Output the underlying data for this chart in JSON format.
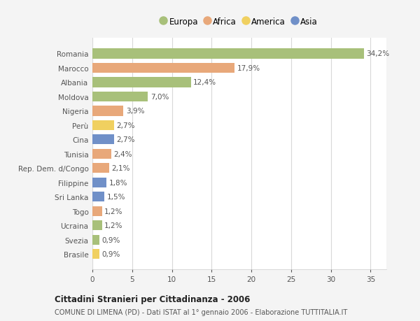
{
  "countries": [
    "Romania",
    "Marocco",
    "Albania",
    "Moldova",
    "Nigeria",
    "Perù",
    "Cina",
    "Tunisia",
    "Rep. Dem. d/Congo",
    "Filippine",
    "Sri Lanka",
    "Togo",
    "Ucraina",
    "Svezia",
    "Brasile"
  ],
  "values": [
    34.2,
    17.9,
    12.4,
    7.0,
    3.9,
    2.7,
    2.7,
    2.4,
    2.1,
    1.8,
    1.5,
    1.2,
    1.2,
    0.9,
    0.9
  ],
  "labels": [
    "34,2%",
    "17,9%",
    "12,4%",
    "7,0%",
    "3,9%",
    "2,7%",
    "2,7%",
    "2,4%",
    "2,1%",
    "1,8%",
    "1,5%",
    "1,2%",
    "1,2%",
    "0,9%",
    "0,9%"
  ],
  "categories": [
    "Europa",
    "Africa",
    "Europa",
    "Europa",
    "Africa",
    "America",
    "Asia",
    "Africa",
    "Africa",
    "Asia",
    "Asia",
    "Africa",
    "Europa",
    "Europa",
    "America"
  ],
  "colors": {
    "Europa": "#a8c07a",
    "Africa": "#e8a87a",
    "America": "#f0d060",
    "Asia": "#7090c8"
  },
  "legend_labels": [
    "Europa",
    "Africa",
    "America",
    "Asia"
  ],
  "title": "Cittadini Stranieri per Cittadinanza - 2006",
  "subtitle": "COMUNE DI LIMENA (PD) - Dati ISTAT al 1° gennaio 2006 - Elaborazione TUTTITALIA.IT",
  "xlim": [
    0,
    37
  ],
  "xticks": [
    0,
    5,
    10,
    15,
    20,
    25,
    30,
    35
  ],
  "background_color": "#f4f4f4",
  "plot_background": "#ffffff",
  "grid_color": "#d8d8d8"
}
